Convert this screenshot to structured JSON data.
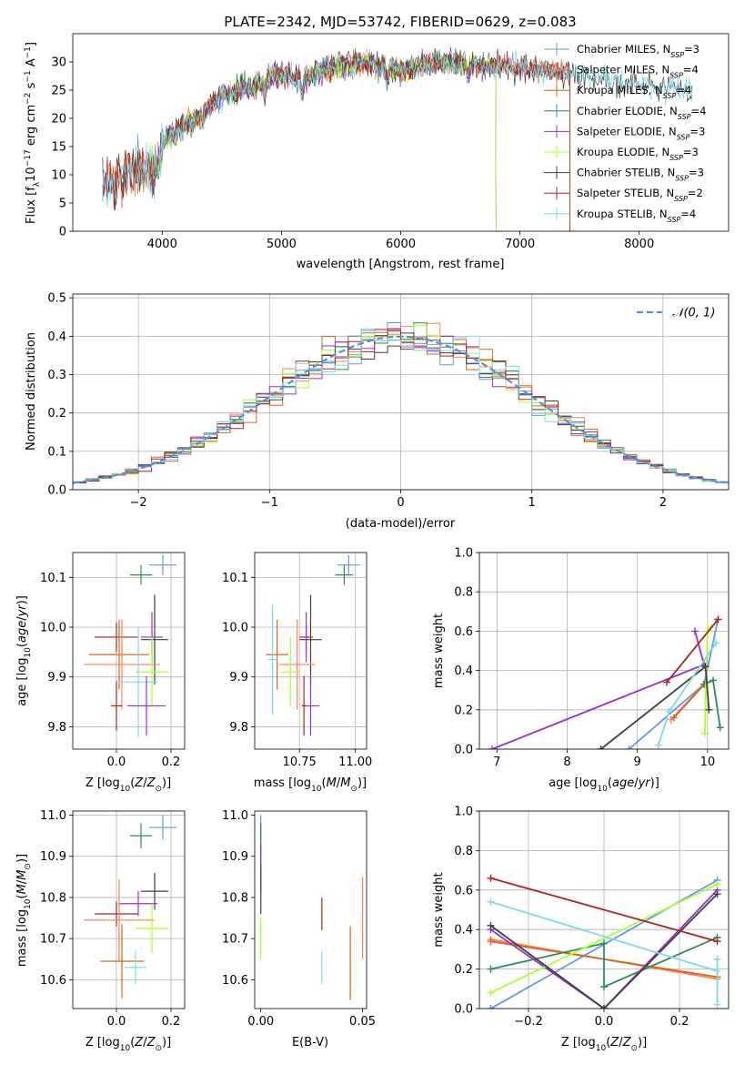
{
  "figure": {
    "title": "PLATE=2342, MJD=53742, FIBERID=0629, z=0.083"
  },
  "colors": {
    "chabrier_miles": "#6495ED",
    "salpeter_miles": "#ff7f50",
    "kroupa_miles": "#D2691E",
    "chabrier_elodie": "#2E8B57",
    "salpeter_elodie": "#9932CC",
    "kroupa_elodie": "#ADFF2F",
    "chabrier_stelib": "#404040",
    "salpeter_stelib": "#B22222",
    "kroupa_stelib": "#7FD8E6",
    "normal": "#5a8ee0",
    "grid": "#b0b0b0"
  },
  "legend_spectrum": [
    {
      "name": "Chabrier MILES",
      "nssp": "3"
    },
    {
      "name": "Salpeter MILES",
      "nssp": "4"
    },
    {
      "name": "Kroupa MILES",
      "nssp": "4"
    },
    {
      "name": "Chabrier ELODIE",
      "nssp": "4"
    },
    {
      "name": "Salpeter ELODIE",
      "nssp": "3"
    },
    {
      "name": "Kroupa ELODIE",
      "nssp": "3"
    },
    {
      "name": "Chabrier STELIB",
      "nssp": "3"
    },
    {
      "name": "Salpeter STELIB",
      "nssp": "2"
    },
    {
      "name": "Kroupa STELIB",
      "nssp": "4"
    }
  ],
  "legend_hist": {
    "label": "𝒩(0, 1)"
  },
  "chart_data": [
    {
      "id": "spectrum",
      "type": "line",
      "xlabel": "wavelength [Angstrom, rest frame]",
      "ylabel": "Flux [f_λ 10^-17 erg cm^-2 s^-1 A^-1]",
      "xlim": [
        3250,
        8750
      ],
      "ylim": [
        0,
        35
      ],
      "xticks": [
        4000,
        5000,
        6000,
        7000,
        8000
      ],
      "yticks": [
        0,
        5,
        10,
        15,
        20,
        25,
        30
      ],
      "continuum": [
        [
          3500,
          8
        ],
        [
          3700,
          10
        ],
        [
          3900,
          11
        ],
        [
          3950,
          14
        ],
        [
          4100,
          18
        ],
        [
          4300,
          20
        ],
        [
          4500,
          24
        ],
        [
          4800,
          26
        ],
        [
          5000,
          28
        ],
        [
          5200,
          27
        ],
        [
          5400,
          29
        ],
        [
          5700,
          30
        ],
        [
          6000,
          28.5
        ],
        [
          6300,
          30
        ],
        [
          6600,
          29.5
        ],
        [
          7000,
          29
        ],
        [
          7400,
          28
        ],
        [
          7800,
          26.5
        ],
        [
          8200,
          25.5
        ],
        [
          8450,
          25
        ]
      ],
      "features": [
        [
          3934,
          4
        ],
        [
          3968,
          3
        ],
        [
          4101,
          2
        ],
        [
          4340,
          2
        ],
        [
          4861,
          2
        ],
        [
          5175,
          3
        ],
        [
          5890,
          2.5
        ],
        [
          6563,
          2
        ]
      ],
      "series_ranges": [
        {
          "key": "chabrier_miles",
          "x": [
            3500,
            7420
          ],
          "drop": 7420
        },
        {
          "key": "salpeter_miles",
          "x": [
            3500,
            7420
          ],
          "drop": 7420
        },
        {
          "key": "kroupa_miles",
          "x": [
            3500,
            7420
          ],
          "drop": 7420
        },
        {
          "key": "chabrier_elodie",
          "x": [
            3900,
            6800
          ],
          "drop": 6800
        },
        {
          "key": "salpeter_elodie",
          "x": [
            3900,
            6800
          ],
          "drop": 6800
        },
        {
          "key": "kroupa_elodie",
          "x": [
            3900,
            6800
          ],
          "drop": 6800
        },
        {
          "key": "chabrier_stelib",
          "x": [
            3500,
            8450
          ]
        },
        {
          "key": "salpeter_stelib",
          "x": [
            3500,
            7420
          ],
          "drop": 7420
        },
        {
          "key": "kroupa_stelib",
          "x": [
            3500,
            8450
          ]
        }
      ]
    },
    {
      "id": "residuals",
      "type": "step",
      "xlabel": "(data-model)/error",
      "ylabel": "Normed distribution",
      "xlim": [
        -2.5,
        2.5
      ],
      "ylim": [
        0,
        0.51
      ],
      "xticks": [
        -2,
        -1,
        0,
        1,
        2
      ],
      "yticks": [
        0.0,
        0.1,
        0.2,
        0.3,
        0.4,
        0.5
      ],
      "bin_width": 0.1,
      "grid": true,
      "legend_location": "upper right"
    },
    {
      "id": "age_vs_Z",
      "type": "errorbar",
      "xlabel": "Z [log10(Z/Z⊙)]",
      "ylabel": "age  [log10(age/yr)]",
      "xlim": [
        -0.16,
        0.25
      ],
      "ylim": [
        9.755,
        10.15
      ],
      "xticks": [
        0.0,
        0.2
      ],
      "yticks": [
        9.8,
        9.9,
        10.0,
        10.1
      ],
      "grid": true,
      "points": [
        {
          "key": "chabrier_miles",
          "x": 0.17,
          "y": 10.125,
          "xerr": 0.05,
          "yerr": 0.02
        },
        {
          "key": "chabrier_elodie",
          "x": 0.09,
          "y": 10.105,
          "xerr": 0.04,
          "yerr": 0.02
        },
        {
          "key": "chabrier_stelib",
          "x": 0.14,
          "y": 9.975,
          "xerr": 0.05,
          "yerr": 0.09
        },
        {
          "key": "salpeter_stelib",
          "x": 0.0,
          "y": 9.98,
          "xerr": 0.08,
          "yerr": 0.03
        },
        {
          "key": "salpeter_elodie",
          "x": 0.13,
          "y": 9.98,
          "xerr": 0.04,
          "yerr": 0.05
        },
        {
          "key": "kroupa_miles",
          "x": 0.01,
          "y": 9.945,
          "xerr": 0.11,
          "yerr": 0.07
        },
        {
          "key": "salpeter_miles",
          "x": 0.02,
          "y": 9.925,
          "xerr": 0.14,
          "yerr": 0.09
        },
        {
          "key": "kroupa_elodie",
          "x": 0.13,
          "y": 9.91,
          "xerr": 0.06,
          "yerr": 0.07
        },
        {
          "key": "kroupa_stelib",
          "x": 0.08,
          "y": 9.89,
          "xerr": 0.07,
          "yerr": 0.11
        },
        {
          "key": "salpeter_elodie",
          "x": 0.11,
          "y": 9.842,
          "xerr": 0.07,
          "yerr": 0.06
        },
        {
          "key": "salpeter_stelib",
          "x": 0.0,
          "y": 9.842,
          "xerr": 0.02,
          "yerr": 0.05
        }
      ]
    },
    {
      "id": "age_vs_mass",
      "type": "errorbar",
      "xlabel": "mass [log10(M/M⊙)]",
      "ylabel": "",
      "xlim": [
        10.55,
        11.05
      ],
      "ylim": [
        9.755,
        10.15
      ],
      "xticks": [
        10.75,
        11.0
      ],
      "yticks": [
        9.8,
        9.9,
        10.0,
        10.1
      ],
      "grid": true,
      "points": [
        {
          "key": "chabrier_miles",
          "x": 10.97,
          "y": 10.125,
          "xerr": 0.05,
          "yerr": 0.02
        },
        {
          "key": "chabrier_elodie",
          "x": 10.95,
          "y": 10.105,
          "xerr": 0.04,
          "yerr": 0.02
        },
        {
          "key": "chabrier_stelib",
          "x": 10.8,
          "y": 9.975,
          "xerr": 0.05,
          "yerr": 0.09
        },
        {
          "key": "salpeter_stelib",
          "x": 10.78,
          "y": 9.98,
          "xerr": 0.03,
          "yerr": 0.03
        },
        {
          "key": "salpeter_elodie",
          "x": 10.78,
          "y": 9.98,
          "xerr": 0.02,
          "yerr": 0.05
        },
        {
          "key": "kroupa_miles",
          "x": 10.65,
          "y": 9.945,
          "xerr": 0.05,
          "yerr": 0.07
        },
        {
          "key": "salpeter_miles",
          "x": 10.74,
          "y": 9.925,
          "xerr": 0.08,
          "yerr": 0.09
        },
        {
          "key": "kroupa_elodie",
          "x": 10.71,
          "y": 9.91,
          "xerr": 0.04,
          "yerr": 0.07
        },
        {
          "key": "kroupa_stelib",
          "x": 10.63,
          "y": 9.935,
          "xerr": 0.02,
          "yerr": 0.11
        },
        {
          "key": "salpeter_elodie",
          "x": 10.8,
          "y": 9.842,
          "xerr": 0.04,
          "yerr": 0.06
        },
        {
          "key": "salpeter_stelib",
          "x": 10.77,
          "y": 9.842,
          "xerr": 0.01,
          "yerr": 0.06
        }
      ]
    },
    {
      "id": "weight_vs_age",
      "type": "line",
      "xlabel": "age  [log10(age/yr)]",
      "ylabel": "mass weight",
      "xlim": [
        6.75,
        10.3
      ],
      "ylim": [
        0,
        1
      ],
      "xticks": [
        7,
        8,
        9,
        10
      ],
      "yticks": [
        0.0,
        0.2,
        0.4,
        0.6,
        0.8,
        1.0
      ],
      "grid": true,
      "series": [
        {
          "key": "chabrier_miles",
          "pts": [
            [
              8.88,
              0.0
            ],
            [
              9.95,
              0.33
            ],
            [
              10.15,
              0.66
            ]
          ]
        },
        {
          "key": "salpeter_miles",
          "pts": [
            [
              9.48,
              0.15
            ],
            [
              9.95,
              0.33
            ]
          ]
        },
        {
          "key": "kroupa_miles",
          "pts": [
            [
              9.52,
              0.16
            ],
            [
              9.98,
              0.34
            ]
          ]
        },
        {
          "key": "chabrier_elodie",
          "pts": [
            [
              9.95,
              0.33
            ],
            [
              10.08,
              0.35
            ],
            [
              10.18,
              0.11
            ]
          ]
        },
        {
          "key": "salpeter_elodie",
          "pts": [
            [
              6.93,
              0.0
            ],
            [
              9.95,
              0.43
            ],
            [
              9.82,
              0.6
            ]
          ]
        },
        {
          "key": "kroupa_elodie",
          "pts": [
            [
              9.96,
              0.08
            ],
            [
              10.0,
              0.6
            ],
            [
              10.05,
              0.62
            ]
          ]
        },
        {
          "key": "chabrier_stelib",
          "pts": [
            [
              8.48,
              0.0
            ],
            [
              9.97,
              0.42
            ],
            [
              10.02,
              0.2
            ]
          ]
        },
        {
          "key": "salpeter_stelib",
          "pts": [
            [
              9.42,
              0.34
            ],
            [
              10.15,
              0.66
            ]
          ]
        },
        {
          "key": "kroupa_stelib",
          "pts": [
            [
              9.3,
              0.02
            ],
            [
              9.45,
              0.19
            ],
            [
              10.12,
              0.54
            ]
          ]
        }
      ]
    },
    {
      "id": "mass_vs_Z",
      "type": "errorbar",
      "xlabel": "Z [log10(Z/Z⊙)]",
      "ylabel": "mass [log10(M/M⊙)]",
      "xlim": [
        -0.16,
        0.25
      ],
      "ylim": [
        10.53,
        11.01
      ],
      "xticks": [
        0.0,
        0.2
      ],
      "yticks": [
        10.6,
        10.7,
        10.8,
        10.9,
        11.0
      ],
      "grid": true,
      "points": [
        {
          "key": "chabrier_miles",
          "x": 0.17,
          "y": 10.97,
          "xerr": 0.05,
          "yerr": 0.03
        },
        {
          "key": "chabrier_elodie",
          "x": 0.09,
          "y": 10.95,
          "xerr": 0.04,
          "yerr": 0.03
        },
        {
          "key": "chabrier_stelib",
          "x": 0.14,
          "y": 10.815,
          "xerr": 0.05,
          "yerr": 0.045
        },
        {
          "key": "salpeter_elodie",
          "x": 0.08,
          "y": 10.785,
          "xerr": 0.07,
          "yerr": 0.03
        },
        {
          "key": "salpeter_stelib",
          "x": 0.0,
          "y": 10.76,
          "xerr": 0.08,
          "yerr": 0.03
        },
        {
          "key": "salpeter_miles",
          "x": 0.01,
          "y": 10.745,
          "xerr": 0.13,
          "yerr": 0.1
        },
        {
          "key": "kroupa_elodie",
          "x": 0.13,
          "y": 10.725,
          "xerr": 0.06,
          "yerr": 0.06
        },
        {
          "key": "kroupa_miles",
          "x": 0.02,
          "y": 10.645,
          "xerr": 0.08,
          "yerr": 0.09
        },
        {
          "key": "kroupa_stelib",
          "x": 0.07,
          "y": 10.63,
          "xerr": 0.04,
          "yerr": 0.04
        }
      ]
    },
    {
      "id": "mass_vs_ebv",
      "type": "errorbar",
      "xlabel": "E(B-V)",
      "ylabel": "",
      "xlim": [
        -0.003,
        0.052
      ],
      "ylim": [
        10.53,
        11.01
      ],
      "xticks": [
        0.0,
        0.05
      ],
      "yticks": [
        10.6,
        10.7,
        10.8,
        10.9,
        11.0
      ],
      "grid": false,
      "points": [
        {
          "key": "chabrier_miles",
          "x": 0.0,
          "y": 10.97,
          "xerr": 0,
          "yerr": 0.03
        },
        {
          "key": "chabrier_elodie",
          "x": 0.0,
          "y": 10.93,
          "xerr": 0,
          "yerr": 0.05
        },
        {
          "key": "salpeter_elodie",
          "x": 0.0,
          "y": 10.87,
          "xerr": 0,
          "yerr": 0.06
        },
        {
          "key": "chabrier_stelib",
          "x": 0.0,
          "y": 10.82,
          "xerr": 0,
          "yerr": 0.06
        },
        {
          "key": "kroupa_elodie",
          "x": 0.0,
          "y": 10.7,
          "xerr": 0,
          "yerr": 0.05
        },
        {
          "key": "salpeter_stelib",
          "x": 0.03,
          "y": 10.76,
          "xerr": 0,
          "yerr": 0.04
        },
        {
          "key": "kroupa_stelib",
          "x": 0.03,
          "y": 10.63,
          "xerr": 0,
          "yerr": 0.04
        },
        {
          "key": "kroupa_miles",
          "x": 0.044,
          "y": 10.64,
          "xerr": 0,
          "yerr": 0.09
        },
        {
          "key": "salpeter_miles",
          "x": 0.05,
          "y": 10.75,
          "xerr": 0,
          "yerr": 0.1
        }
      ]
    },
    {
      "id": "weight_vs_Z",
      "type": "line",
      "xlabel": "Z [log10(Z/Z⊙)]",
      "ylabel": "mass weight",
      "xlim": [
        -0.33,
        0.33
      ],
      "ylim": [
        0,
        1
      ],
      "xticks": [
        -0.2,
        0.0,
        0.2
      ],
      "yticks": [
        0.0,
        0.2,
        0.4,
        0.6,
        0.8,
        1.0
      ],
      "grid": true,
      "series": [
        {
          "key": "chabrier_miles",
          "pts": [
            [
              -0.3,
              0.0
            ],
            [
              0.3,
              0.65
            ]
          ]
        },
        {
          "key": "salpeter_miles",
          "pts": [
            [
              -0.3,
              0.35
            ],
            [
              0.3,
              0.15
            ]
          ]
        },
        {
          "key": "kroupa_miles",
          "pts": [
            [
              -0.3,
              0.34
            ],
            [
              0.3,
              0.16
            ]
          ]
        },
        {
          "key": "chabrier_elodie",
          "pts": [
            [
              -0.3,
              0.2
            ],
            [
              0.0,
              0.33
            ],
            [
              0.0,
              0.11
            ],
            [
              0.3,
              0.36
            ]
          ]
        },
        {
          "key": "salpeter_elodie",
          "pts": [
            [
              -0.3,
              0.4
            ],
            [
              0.0,
              0.0
            ],
            [
              0.3,
              0.6
            ]
          ]
        },
        {
          "key": "kroupa_elodie",
          "pts": [
            [
              -0.3,
              0.08
            ],
            [
              0.3,
              0.63
            ]
          ]
        },
        {
          "key": "chabrier_stelib",
          "pts": [
            [
              -0.3,
              0.42
            ],
            [
              0.0,
              0.0
            ],
            [
              0.3,
              0.58
            ]
          ]
        },
        {
          "key": "salpeter_stelib",
          "pts": [
            [
              -0.3,
              0.66
            ],
            [
              0.3,
              0.34
            ]
          ]
        },
        {
          "key": "kroupa_stelib",
          "pts": [
            [
              -0.3,
              0.54
            ],
            [
              0.3,
              0.19
            ],
            [
              0.3,
              0.02
            ],
            [
              0.3,
              0.25
            ]
          ]
        }
      ]
    }
  ]
}
